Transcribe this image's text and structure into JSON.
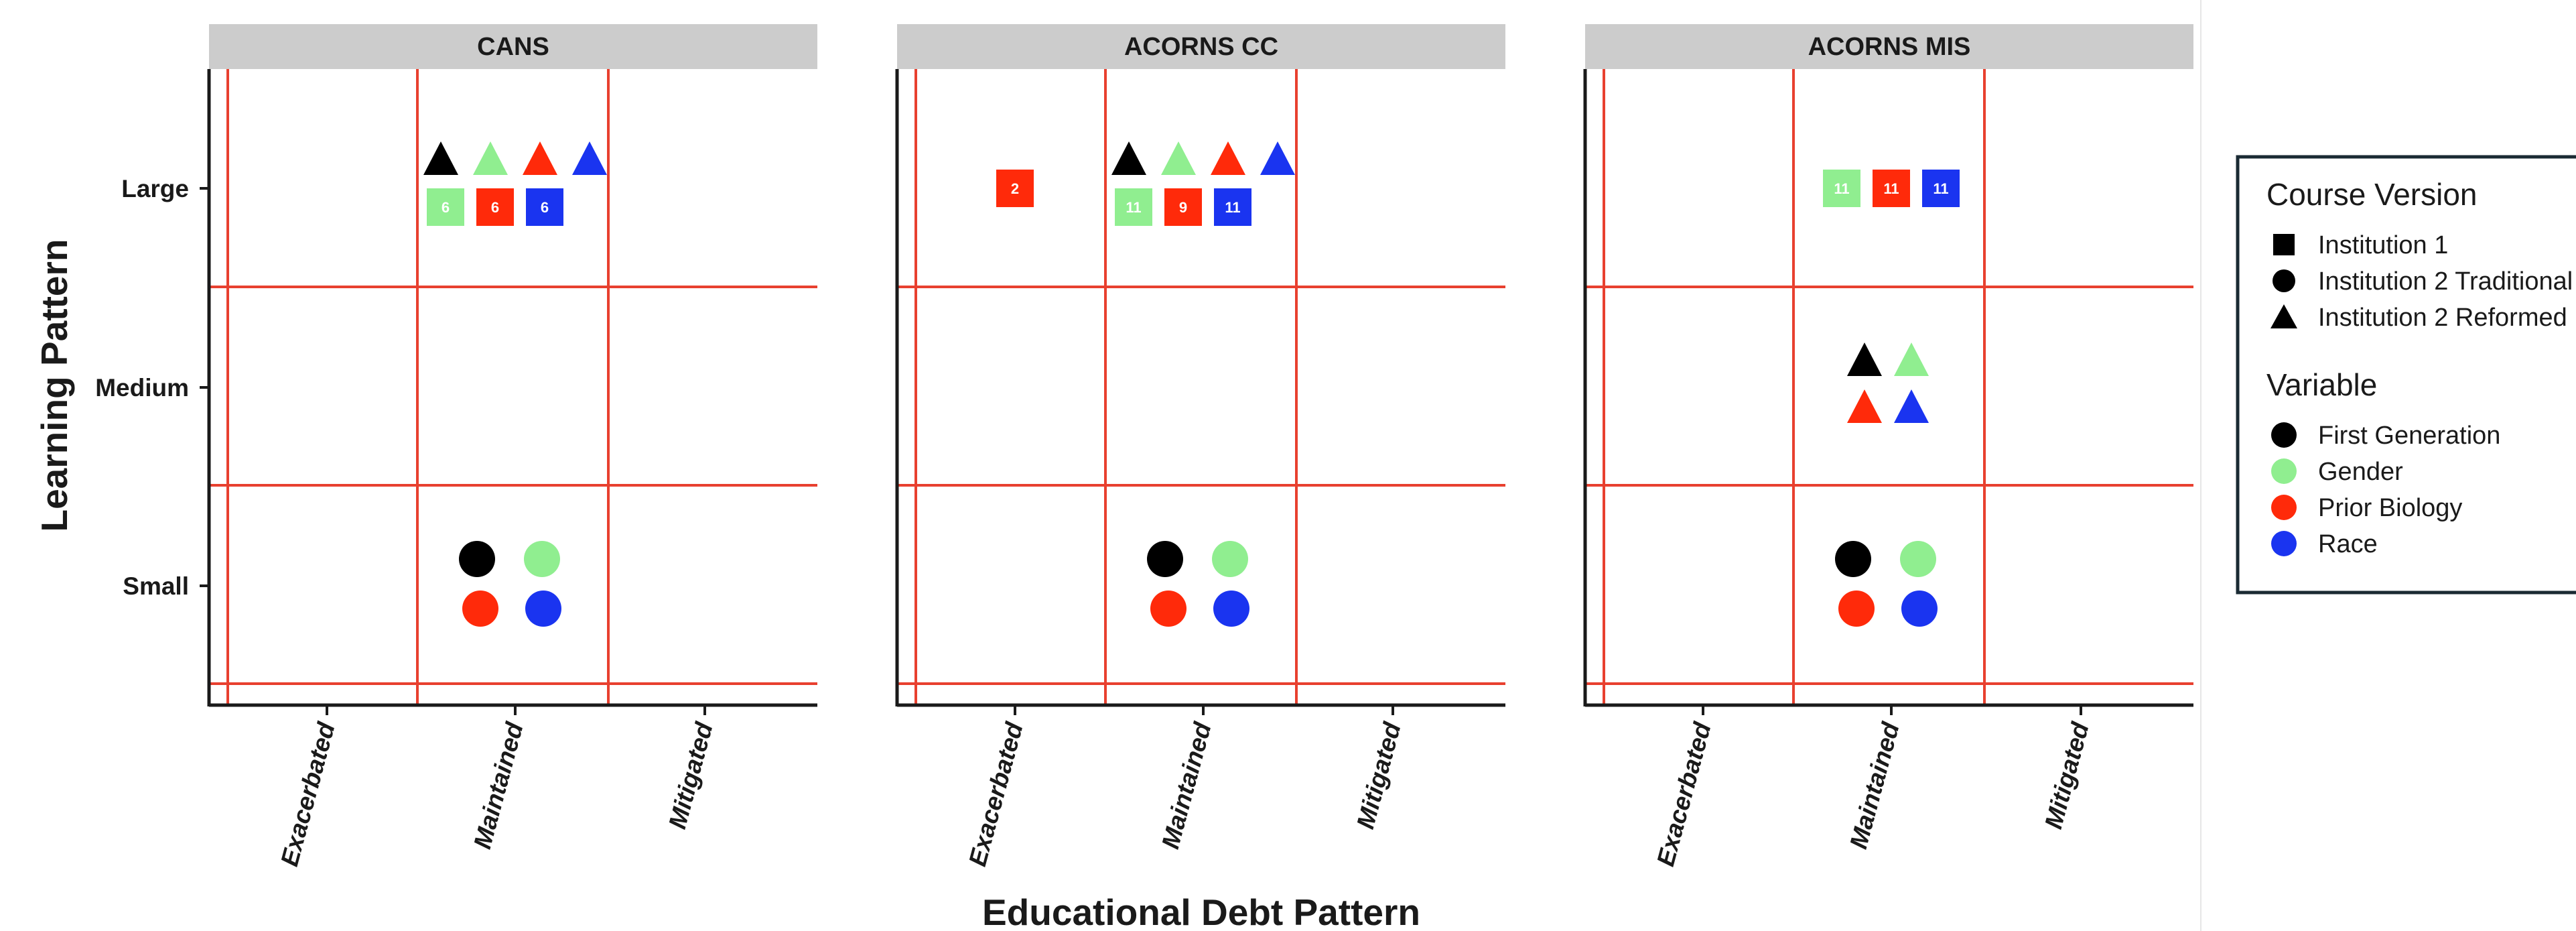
{
  "chart_data": {
    "type": "scatter",
    "xlabel": "Educational Debt Pattern",
    "ylabel": "Learning Pattern",
    "x_categories": [
      "Exacerbated",
      "Maintained",
      "Mitigated"
    ],
    "y_categories": [
      "Small",
      "Medium",
      "Large"
    ],
    "grid": true,
    "legend_position": "right",
    "panels": [
      {
        "title": "CANS",
        "points": [
          {
            "x": "Maintained",
            "y": "Large",
            "shape": "triangle",
            "variable": "First Generation"
          },
          {
            "x": "Maintained",
            "y": "Large",
            "shape": "triangle",
            "variable": "Gender"
          },
          {
            "x": "Maintained",
            "y": "Large",
            "shape": "triangle",
            "variable": "Prior Biology"
          },
          {
            "x": "Maintained",
            "y": "Large",
            "shape": "triangle",
            "variable": "Race"
          },
          {
            "x": "Maintained",
            "y": "Large",
            "shape": "square",
            "variable": "Gender",
            "label": "6"
          },
          {
            "x": "Maintained",
            "y": "Large",
            "shape": "square",
            "variable": "Prior Biology",
            "label": "6"
          },
          {
            "x": "Maintained",
            "y": "Large",
            "shape": "square",
            "variable": "Race",
            "label": "6"
          },
          {
            "x": "Maintained",
            "y": "Small",
            "shape": "circle",
            "variable": "First Generation"
          },
          {
            "x": "Maintained",
            "y": "Small",
            "shape": "circle",
            "variable": "Gender"
          },
          {
            "x": "Maintained",
            "y": "Small",
            "shape": "circle",
            "variable": "Prior Biology"
          },
          {
            "x": "Maintained",
            "y": "Small",
            "shape": "circle",
            "variable": "Race"
          }
        ]
      },
      {
        "title": "ACORNS CC",
        "points": [
          {
            "x": "Exacerbated",
            "y": "Large",
            "shape": "square",
            "variable": "Prior Biology",
            "label": "2"
          },
          {
            "x": "Maintained",
            "y": "Large",
            "shape": "triangle",
            "variable": "First Generation"
          },
          {
            "x": "Maintained",
            "y": "Large",
            "shape": "triangle",
            "variable": "Gender"
          },
          {
            "x": "Maintained",
            "y": "Large",
            "shape": "triangle",
            "variable": "Prior Biology"
          },
          {
            "x": "Maintained",
            "y": "Large",
            "shape": "triangle",
            "variable": "Race"
          },
          {
            "x": "Maintained",
            "y": "Large",
            "shape": "square",
            "variable": "Gender",
            "label": "11"
          },
          {
            "x": "Maintained",
            "y": "Large",
            "shape": "square",
            "variable": "Prior Biology",
            "label": "9"
          },
          {
            "x": "Maintained",
            "y": "Large",
            "shape": "square",
            "variable": "Race",
            "label": "11"
          },
          {
            "x": "Maintained",
            "y": "Small",
            "shape": "circle",
            "variable": "First Generation"
          },
          {
            "x": "Maintained",
            "y": "Small",
            "shape": "circle",
            "variable": "Gender"
          },
          {
            "x": "Maintained",
            "y": "Small",
            "shape": "circle",
            "variable": "Prior Biology"
          },
          {
            "x": "Maintained",
            "y": "Small",
            "shape": "circle",
            "variable": "Race"
          }
        ]
      },
      {
        "title": "ACORNS MIS",
        "points": [
          {
            "x": "Maintained",
            "y": "Large",
            "shape": "square",
            "variable": "Gender",
            "label": "11"
          },
          {
            "x": "Maintained",
            "y": "Large",
            "shape": "square",
            "variable": "Prior Biology",
            "label": "11"
          },
          {
            "x": "Maintained",
            "y": "Large",
            "shape": "square",
            "variable": "Race",
            "label": "11"
          },
          {
            "x": "Maintained",
            "y": "Medium",
            "shape": "triangle",
            "variable": "First Generation"
          },
          {
            "x": "Maintained",
            "y": "Medium",
            "shape": "triangle",
            "variable": "Gender"
          },
          {
            "x": "Maintained",
            "y": "Medium",
            "shape": "triangle",
            "variable": "Prior Biology"
          },
          {
            "x": "Maintained",
            "y": "Medium",
            "shape": "triangle",
            "variable": "Race"
          },
          {
            "x": "Maintained",
            "y": "Small",
            "shape": "circle",
            "variable": "First Generation"
          },
          {
            "x": "Maintained",
            "y": "Small",
            "shape": "circle",
            "variable": "Gender"
          },
          {
            "x": "Maintained",
            "y": "Small",
            "shape": "circle",
            "variable": "Prior Biology"
          },
          {
            "x": "Maintained",
            "y": "Small",
            "shape": "circle",
            "variable": "Race"
          }
        ]
      }
    ],
    "legend": {
      "shape_title": "Course Version",
      "shapes": [
        {
          "label": "Institution 1",
          "shape": "square"
        },
        {
          "label": "Institution 2 Traditional",
          "shape": "circle"
        },
        {
          "label": "Institution 2 Reformed",
          "shape": "triangle"
        }
      ],
      "color_title": "Variable",
      "variables": [
        {
          "label": "First Generation",
          "color": "#000000"
        },
        {
          "label": "Gender",
          "color": "#90ee90"
        },
        {
          "label": "Prior Biology",
          "color": "#ff2a0a"
        },
        {
          "label": "Race",
          "color": "#1a34f0"
        }
      ]
    },
    "colors": {
      "grid": "#e8402f",
      "strip": "#cccccc",
      "axis": "#1a1a1a",
      "legend_border": "#1a2a33"
    }
  }
}
